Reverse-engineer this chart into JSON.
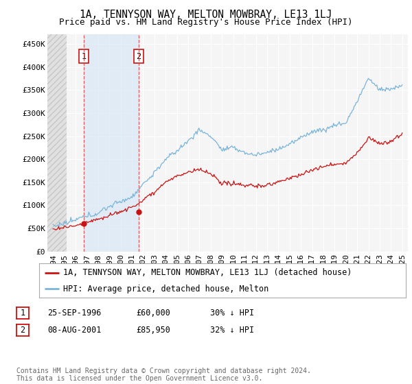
{
  "title": "1A, TENNYSON WAY, MELTON MOWBRAY, LE13 1LJ",
  "subtitle": "Price paid vs. HM Land Registry's House Price Index (HPI)",
  "ylabel_ticks": [
    "£0",
    "£50K",
    "£100K",
    "£150K",
    "£200K",
    "£250K",
    "£300K",
    "£350K",
    "£400K",
    "£450K"
  ],
  "ytick_values": [
    0,
    50000,
    100000,
    150000,
    200000,
    250000,
    300000,
    350000,
    400000,
    450000
  ],
  "ylim": [
    0,
    470000
  ],
  "xlim_start": 1993.5,
  "xlim_end": 2025.5,
  "hpi_color": "#7ab4d8",
  "price_color": "#cc1111",
  "sale1_date": 1996.73,
  "sale1_price": 60000,
  "sale1_label": "1",
  "sale2_date": 2001.6,
  "sale2_price": 85950,
  "sale2_label": "2",
  "legend_line1": "1A, TENNYSON WAY, MELTON MOWBRAY, LE13 1LJ (detached house)",
  "legend_line2": "HPI: Average price, detached house, Melton",
  "table_row1": [
    "1",
    "25-SEP-1996",
    "£60,000",
    "30% ↓ HPI"
  ],
  "table_row2": [
    "2",
    "08-AUG-2001",
    "£85,950",
    "32% ↓ HPI"
  ],
  "footnote": "Contains HM Land Registry data © Crown copyright and database right 2024.\nThis data is licensed under the Open Government Licence v3.0.",
  "bg_color": "#ffffff",
  "plot_bg_color": "#f5f5f5",
  "grid_color": "#ffffff",
  "hatch_color": "#d0d0d0",
  "shade_color": "#d8e8f5",
  "vline_color": "#dd4444",
  "title_fontsize": 10.5,
  "subtitle_fontsize": 9,
  "tick_fontsize": 8,
  "legend_fontsize": 8.5,
  "table_fontsize": 8.5,
  "footnote_fontsize": 7
}
